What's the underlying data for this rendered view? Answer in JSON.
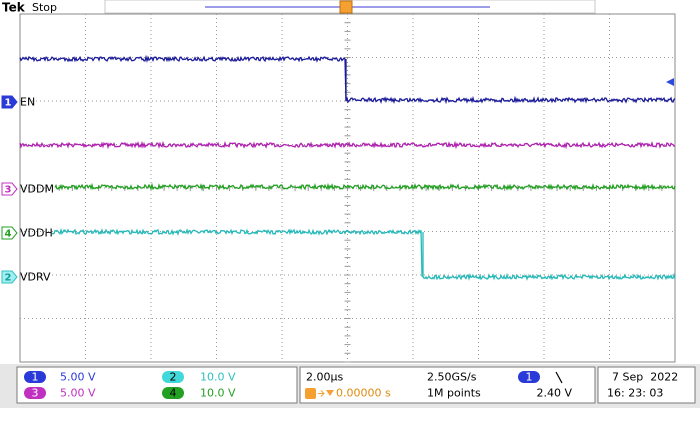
{
  "header": {
    "brand": "Tek",
    "status": "Stop",
    "trigger_marker": "T"
  },
  "traces": [
    {
      "channel": "1",
      "label": "EN"
    },
    {
      "channel": "3",
      "label": "VDDM"
    },
    {
      "channel": "4",
      "label": "VDDH"
    },
    {
      "channel": "2",
      "label": "VDRV"
    }
  ],
  "settings": {
    "channels": [
      {
        "channel": "1",
        "scale": "5.00 V"
      },
      {
        "channel": "2",
        "scale": "10.0 V"
      },
      {
        "channel": "3",
        "scale": "5.00 V"
      },
      {
        "channel": "4",
        "scale": "10.0 V"
      }
    ],
    "timebase": "2.00µs",
    "trigger_position": "0.00000 s",
    "sample_rate": "2.50GS/s",
    "record_length": "1M points",
    "trigger_source": "1",
    "trigger_level": "2.40 V"
  },
  "date": "7 Sep  2022",
  "time": "16: 23: 03"
}
